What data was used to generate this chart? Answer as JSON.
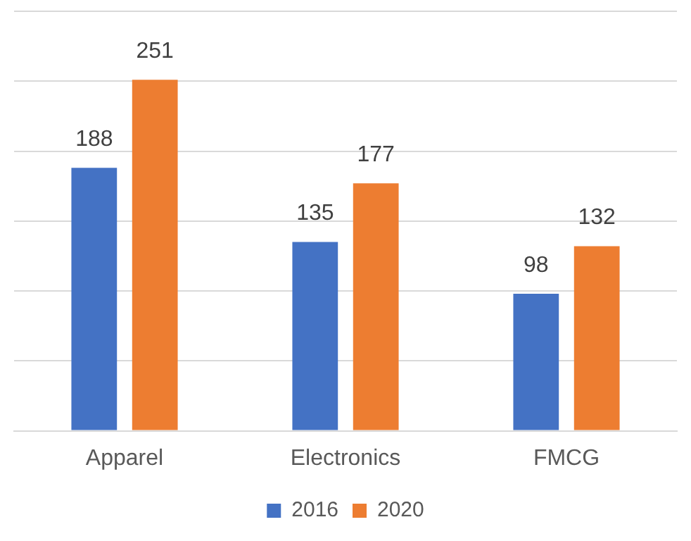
{
  "chart_data": {
    "type": "bar",
    "categories": [
      "Apparel",
      "Electronics",
      "FMCG"
    ],
    "series": [
      {
        "name": "2016",
        "color": "#4472c4",
        "values": [
          188,
          135,
          98
        ]
      },
      {
        "name": "2020",
        "color": "#ed7d31",
        "values": [
          251,
          177,
          132
        ]
      }
    ],
    "ylim": [
      0,
      300
    ],
    "yticks": [
      {
        "value": 0,
        "label": null
      },
      {
        "value": 50,
        "label": null
      },
      {
        "value": 100,
        "label": null
      },
      {
        "value": 150,
        "label": null
      },
      {
        "value": 200,
        "label": null
      },
      {
        "value": 250,
        "label": null
      },
      {
        "value": 300,
        "label": null
      }
    ],
    "grid": "y",
    "legend": "bottom",
    "tick_labels": "x",
    "data_labels": true
  }
}
